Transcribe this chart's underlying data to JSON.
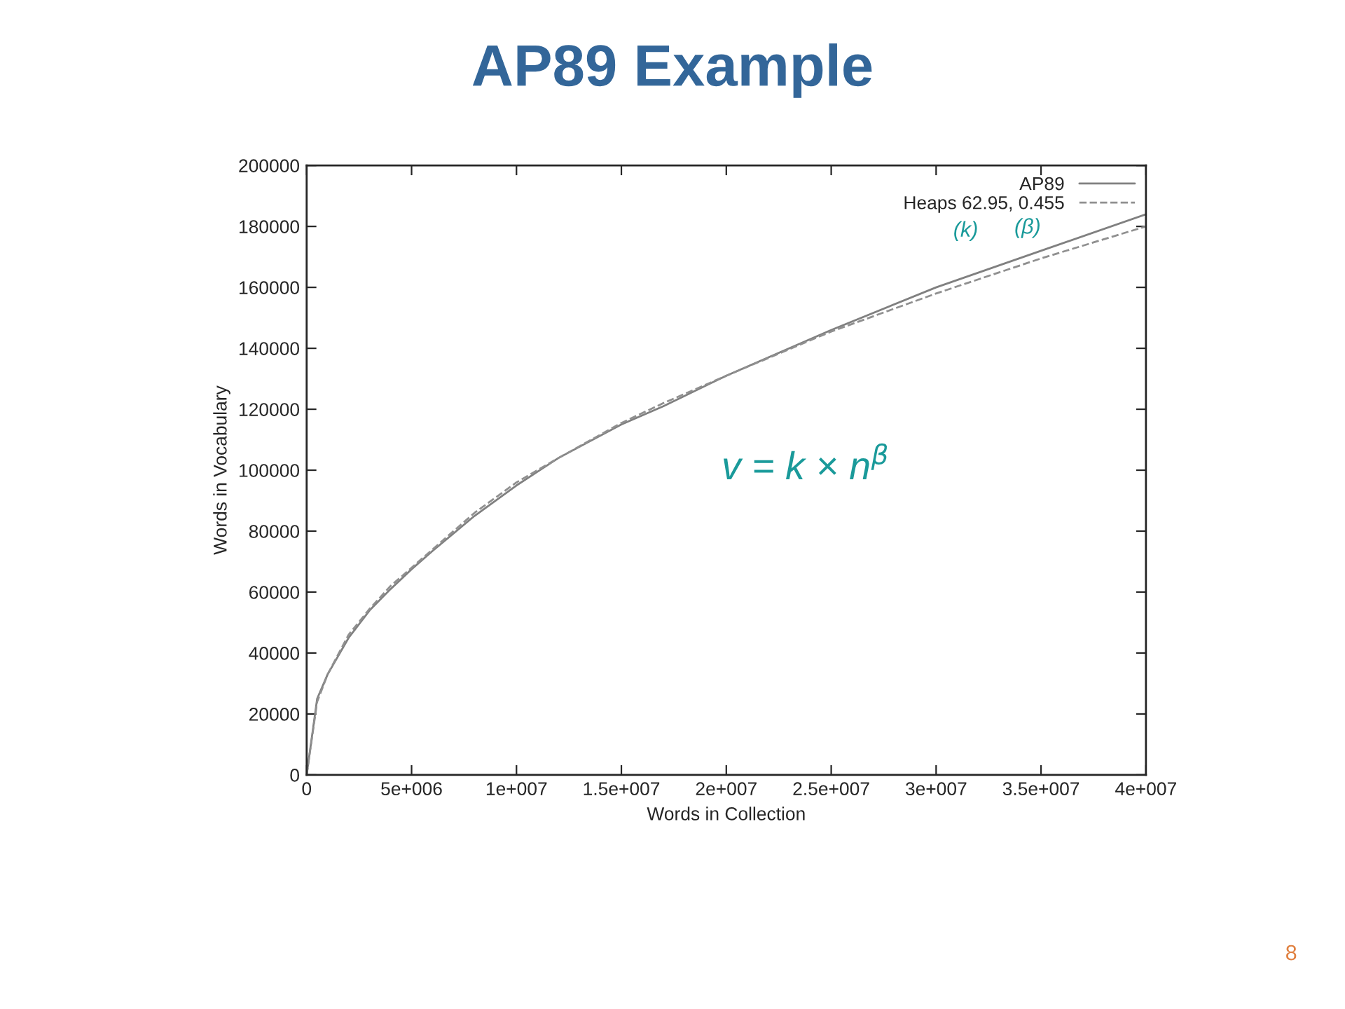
{
  "chart_data": {
    "type": "line",
    "title": "AP89 Example",
    "xlabel": "Words in Collection",
    "ylabel": "Words in Vocabulary",
    "x": [
      0,
      500000,
      1000000,
      2000000,
      3000000,
      4000000,
      5000000,
      6000000,
      8000000,
      10000000,
      12000000,
      15000000,
      17000000,
      20000000,
      25000000,
      30000000,
      35000000,
      40000000
    ],
    "series": [
      {
        "name": "AP89",
        "color": "#808080",
        "line_style": "solid",
        "values": [
          0,
          25000,
          33000,
          45000,
          54000,
          61000,
          67500,
          73500,
          85000,
          95000,
          104000,
          115000,
          121000,
          131000,
          146000,
          160000,
          172000,
          184000
        ]
      },
      {
        "name": "Heaps 62.95, 0.455",
        "color": "#909090",
        "line_style": "dashed",
        "values": [
          0,
          24000,
          33000,
          46000,
          54500,
          62000,
          68000,
          74000,
          86000,
          96000,
          104000,
          115500,
          122000,
          131000,
          145500,
          158000,
          169500,
          180000
        ]
      }
    ],
    "xlim": [
      0,
      40000000
    ],
    "xticks": [
      {
        "value": 0,
        "label": "0"
      },
      {
        "value": 5000000,
        "label": "5e+006"
      },
      {
        "value": 10000000,
        "label": "1e+007"
      },
      {
        "value": 15000000,
        "label": "1.5e+007"
      },
      {
        "value": 20000000,
        "label": "2e+007"
      },
      {
        "value": 25000000,
        "label": "2.5e+007"
      },
      {
        "value": 30000000,
        "label": "3e+007"
      },
      {
        "value": 35000000,
        "label": "3.5e+007"
      },
      {
        "value": 40000000,
        "label": "4e+007"
      }
    ],
    "ylim": [
      0,
      200000
    ],
    "yticks": [
      0,
      20000,
      40000,
      60000,
      80000,
      100000,
      120000,
      140000,
      160000,
      180000,
      200000
    ],
    "grid": false,
    "legend": "top right",
    "marker": "none",
    "annotations": [
      "v = k × n$^{β}$",
      "(k)",
      "(β)",
      "8"
    ]
  }
}
